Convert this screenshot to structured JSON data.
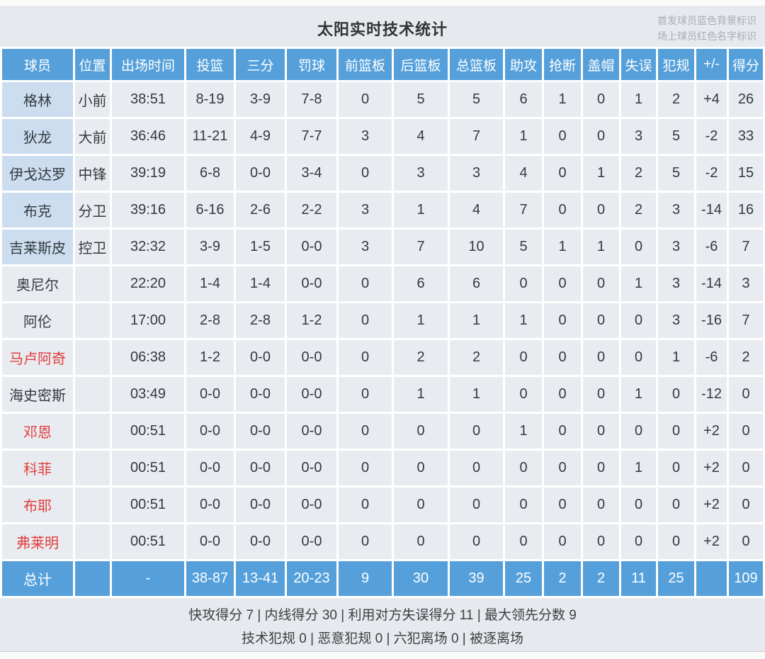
{
  "page": {
    "title": "太阳实时技术统计",
    "legend_starter": "首发球员蓝色背景标识",
    "legend_oncourt": "场上球员红色名字标识"
  },
  "table": {
    "headers": [
      "球员",
      "位置",
      "出场时间",
      "投篮",
      "三分",
      "罚球",
      "前篮板",
      "后篮板",
      "总篮板",
      "助攻",
      "抢断",
      "盖帽",
      "失误",
      "犯规",
      "+/-",
      "得分"
    ],
    "rows": [
      {
        "starter": true,
        "on_court": false,
        "cells": [
          "格林",
          "小前",
          "38:51",
          "8-19",
          "3-9",
          "7-8",
          "0",
          "5",
          "5",
          "6",
          "1",
          "0",
          "1",
          "2",
          "+4",
          "26"
        ]
      },
      {
        "starter": true,
        "on_court": false,
        "cells": [
          "狄龙",
          "大前",
          "36:46",
          "11-21",
          "4-9",
          "7-7",
          "3",
          "4",
          "7",
          "1",
          "0",
          "0",
          "3",
          "5",
          "-2",
          "33"
        ]
      },
      {
        "starter": true,
        "on_court": false,
        "cells": [
          "伊戈达罗",
          "中锋",
          "39:19",
          "6-8",
          "0-0",
          "3-4",
          "0",
          "3",
          "3",
          "4",
          "0",
          "1",
          "2",
          "5",
          "-2",
          "15"
        ]
      },
      {
        "starter": true,
        "on_court": false,
        "cells": [
          "布克",
          "分卫",
          "39:16",
          "6-16",
          "2-6",
          "2-2",
          "3",
          "1",
          "4",
          "7",
          "0",
          "0",
          "2",
          "3",
          "-14",
          "16"
        ]
      },
      {
        "starter": true,
        "on_court": false,
        "cells": [
          "吉莱斯皮",
          "控卫",
          "32:32",
          "3-9",
          "1-5",
          "0-0",
          "3",
          "7",
          "10",
          "5",
          "1",
          "1",
          "0",
          "3",
          "-6",
          "7"
        ]
      },
      {
        "starter": false,
        "on_court": false,
        "cells": [
          "奥尼尔",
          "",
          "22:20",
          "1-4",
          "1-4",
          "0-0",
          "0",
          "6",
          "6",
          "0",
          "0",
          "0",
          "1",
          "3",
          "-14",
          "3"
        ]
      },
      {
        "starter": false,
        "on_court": false,
        "cells": [
          "阿伦",
          "",
          "17:00",
          "2-8",
          "2-8",
          "1-2",
          "0",
          "1",
          "1",
          "1",
          "0",
          "0",
          "0",
          "3",
          "-16",
          "7"
        ]
      },
      {
        "starter": false,
        "on_court": true,
        "cells": [
          "马卢阿奇",
          "",
          "06:38",
          "1-2",
          "0-0",
          "0-0",
          "0",
          "2",
          "2",
          "0",
          "0",
          "0",
          "0",
          "1",
          "-6",
          "2"
        ]
      },
      {
        "starter": false,
        "on_court": false,
        "cells": [
          "海史密斯",
          "",
          "03:49",
          "0-0",
          "0-0",
          "0-0",
          "0",
          "1",
          "1",
          "0",
          "0",
          "0",
          "1",
          "0",
          "-12",
          "0"
        ]
      },
      {
        "starter": false,
        "on_court": true,
        "cells": [
          "邓恩",
          "",
          "00:51",
          "0-0",
          "0-0",
          "0-0",
          "0",
          "0",
          "0",
          "1",
          "0",
          "0",
          "0",
          "0",
          "+2",
          "0"
        ]
      },
      {
        "starter": false,
        "on_court": true,
        "cells": [
          "科菲",
          "",
          "00:51",
          "0-0",
          "0-0",
          "0-0",
          "0",
          "0",
          "0",
          "0",
          "0",
          "0",
          "1",
          "0",
          "+2",
          "0"
        ]
      },
      {
        "starter": false,
        "on_court": true,
        "cells": [
          "布耶",
          "",
          "00:51",
          "0-0",
          "0-0",
          "0-0",
          "0",
          "0",
          "0",
          "0",
          "0",
          "0",
          "0",
          "0",
          "+2",
          "0"
        ]
      },
      {
        "starter": false,
        "on_court": true,
        "cells": [
          "弗莱明",
          "",
          "00:51",
          "0-0",
          "0-0",
          "0-0",
          "0",
          "0",
          "0",
          "0",
          "0",
          "0",
          "0",
          "0",
          "+2",
          "0"
        ]
      }
    ],
    "total": {
      "cells": [
        "总计",
        "",
        "-",
        "38-87",
        "13-41",
        "20-23",
        "9",
        "30",
        "39",
        "25",
        "2",
        "2",
        "11",
        "25",
        "",
        "109"
      ]
    }
  },
  "footer": {
    "line1": "快攻得分 7 | 内线得分 30 | 利用对方失误得分 11 | 最大领先分数 9",
    "line2": "技术犯规 0 | 恶意犯规 0 | 六犯离场 0 | 被逐离场"
  },
  "colors": {
    "header_bg": "#55a0db",
    "header_text": "#ffffff",
    "cell_bg": "#e8ecf0",
    "starter_name_bg": "#cbddee",
    "name_text": "#333a40",
    "on_court_name": "#e23d3d",
    "total_bg": "#55a0db",
    "total_text": "#ffffff",
    "page_bg": "#e6eaee",
    "title_text": "#333333",
    "legend_text": "#a9adb2",
    "footer_text": "#3c4043",
    "grid_line": "#ffffff"
  }
}
